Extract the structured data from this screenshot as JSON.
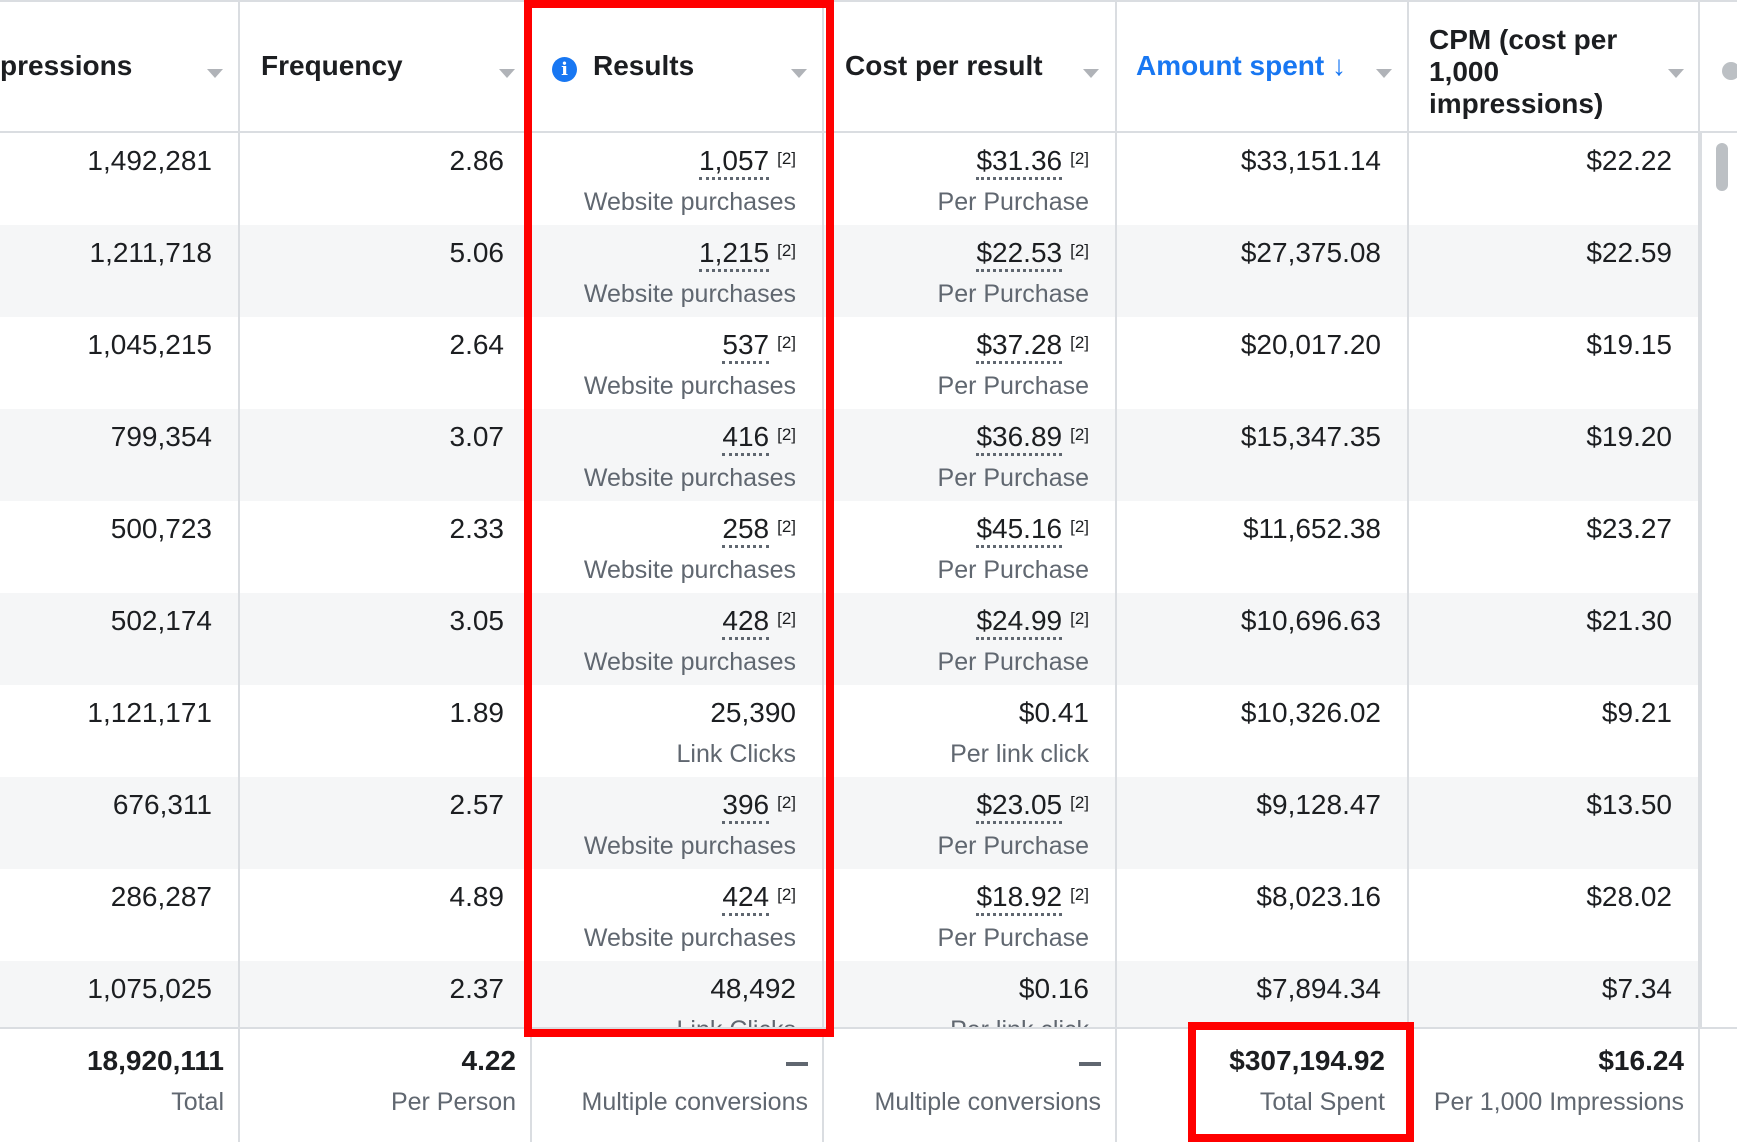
{
  "columns": {
    "impressions": "pressions",
    "frequency": "Frequency",
    "results": "Results",
    "cost_per_result": "Cost per result",
    "amount_spent": "Amount spent",
    "amount_spent_arrow": "↓",
    "cpm": "CPM (cost per 1,000 impressions)"
  },
  "accent_color": "#1877f2",
  "highlight_color": "#ff0000",
  "rows": [
    {
      "impressions": "1,492,281",
      "frequency": "2.86",
      "results": "1,057",
      "results_ref": "[2]",
      "results_type": "Website purchases",
      "cost": "$31.36",
      "cost_ref": "[2]",
      "cost_type": "Per Purchase",
      "amount": "$33,151.14",
      "cpm": "$22.22"
    },
    {
      "impressions": "1,211,718",
      "frequency": "5.06",
      "results": "1,215",
      "results_ref": "[2]",
      "results_type": "Website purchases",
      "cost": "$22.53",
      "cost_ref": "[2]",
      "cost_type": "Per Purchase",
      "amount": "$27,375.08",
      "cpm": "$22.59"
    },
    {
      "impressions": "1,045,215",
      "frequency": "2.64",
      "results": "537",
      "results_ref": "[2]",
      "results_type": "Website purchases",
      "cost": "$37.28",
      "cost_ref": "[2]",
      "cost_type": "Per Purchase",
      "amount": "$20,017.20",
      "cpm": "$19.15"
    },
    {
      "impressions": "799,354",
      "frequency": "3.07",
      "results": "416",
      "results_ref": "[2]",
      "results_type": "Website purchases",
      "cost": "$36.89",
      "cost_ref": "[2]",
      "cost_type": "Per Purchase",
      "amount": "$15,347.35",
      "cpm": "$19.20"
    },
    {
      "impressions": "500,723",
      "frequency": "2.33",
      "results": "258",
      "results_ref": "[2]",
      "results_type": "Website purchases",
      "cost": "$45.16",
      "cost_ref": "[2]",
      "cost_type": "Per Purchase",
      "amount": "$11,652.38",
      "cpm": "$23.27"
    },
    {
      "impressions": "502,174",
      "frequency": "3.05",
      "results": "428",
      "results_ref": "[2]",
      "results_type": "Website purchases",
      "cost": "$24.99",
      "cost_ref": "[2]",
      "cost_type": "Per Purchase",
      "amount": "$10,696.63",
      "cpm": "$21.30"
    },
    {
      "impressions": "1,121,171",
      "frequency": "1.89",
      "results": "25,390",
      "results_ref": "",
      "results_type": "Link Clicks",
      "cost": "$0.41",
      "cost_ref": "",
      "cost_type": "Per link click",
      "amount": "$10,326.02",
      "cpm": "$9.21"
    },
    {
      "impressions": "676,311",
      "frequency": "2.57",
      "results": "396",
      "results_ref": "[2]",
      "results_type": "Website purchases",
      "cost": "$23.05",
      "cost_ref": "[2]",
      "cost_type": "Per Purchase",
      "amount": "$9,128.47",
      "cpm": "$13.50"
    },
    {
      "impressions": "286,287",
      "frequency": "4.89",
      "results": "424",
      "results_ref": "[2]",
      "results_type": "Website purchases",
      "cost": "$18.92",
      "cost_ref": "[2]",
      "cost_type": "Per Purchase",
      "amount": "$8,023.16",
      "cpm": "$28.02"
    },
    {
      "impressions": "1,075,025",
      "frequency": "2.37",
      "results": "48,492",
      "results_ref": "",
      "results_type": "Link Clicks",
      "cost": "$0.16",
      "cost_ref": "",
      "cost_type": "Per link click",
      "amount": "$7,894.34",
      "cpm": "$7.34"
    }
  ],
  "totals": {
    "impressions": "18,920,111",
    "impressions_label": "Total",
    "frequency": "4.22",
    "frequency_label": "Per Person",
    "results_label": "Multiple conversions",
    "cost_label": "Multiple conversions",
    "amount": "$307,194.92",
    "amount_label": "Total Spent",
    "cpm": "$16.24",
    "cpm_label": "Per 1,000 Impressions"
  }
}
